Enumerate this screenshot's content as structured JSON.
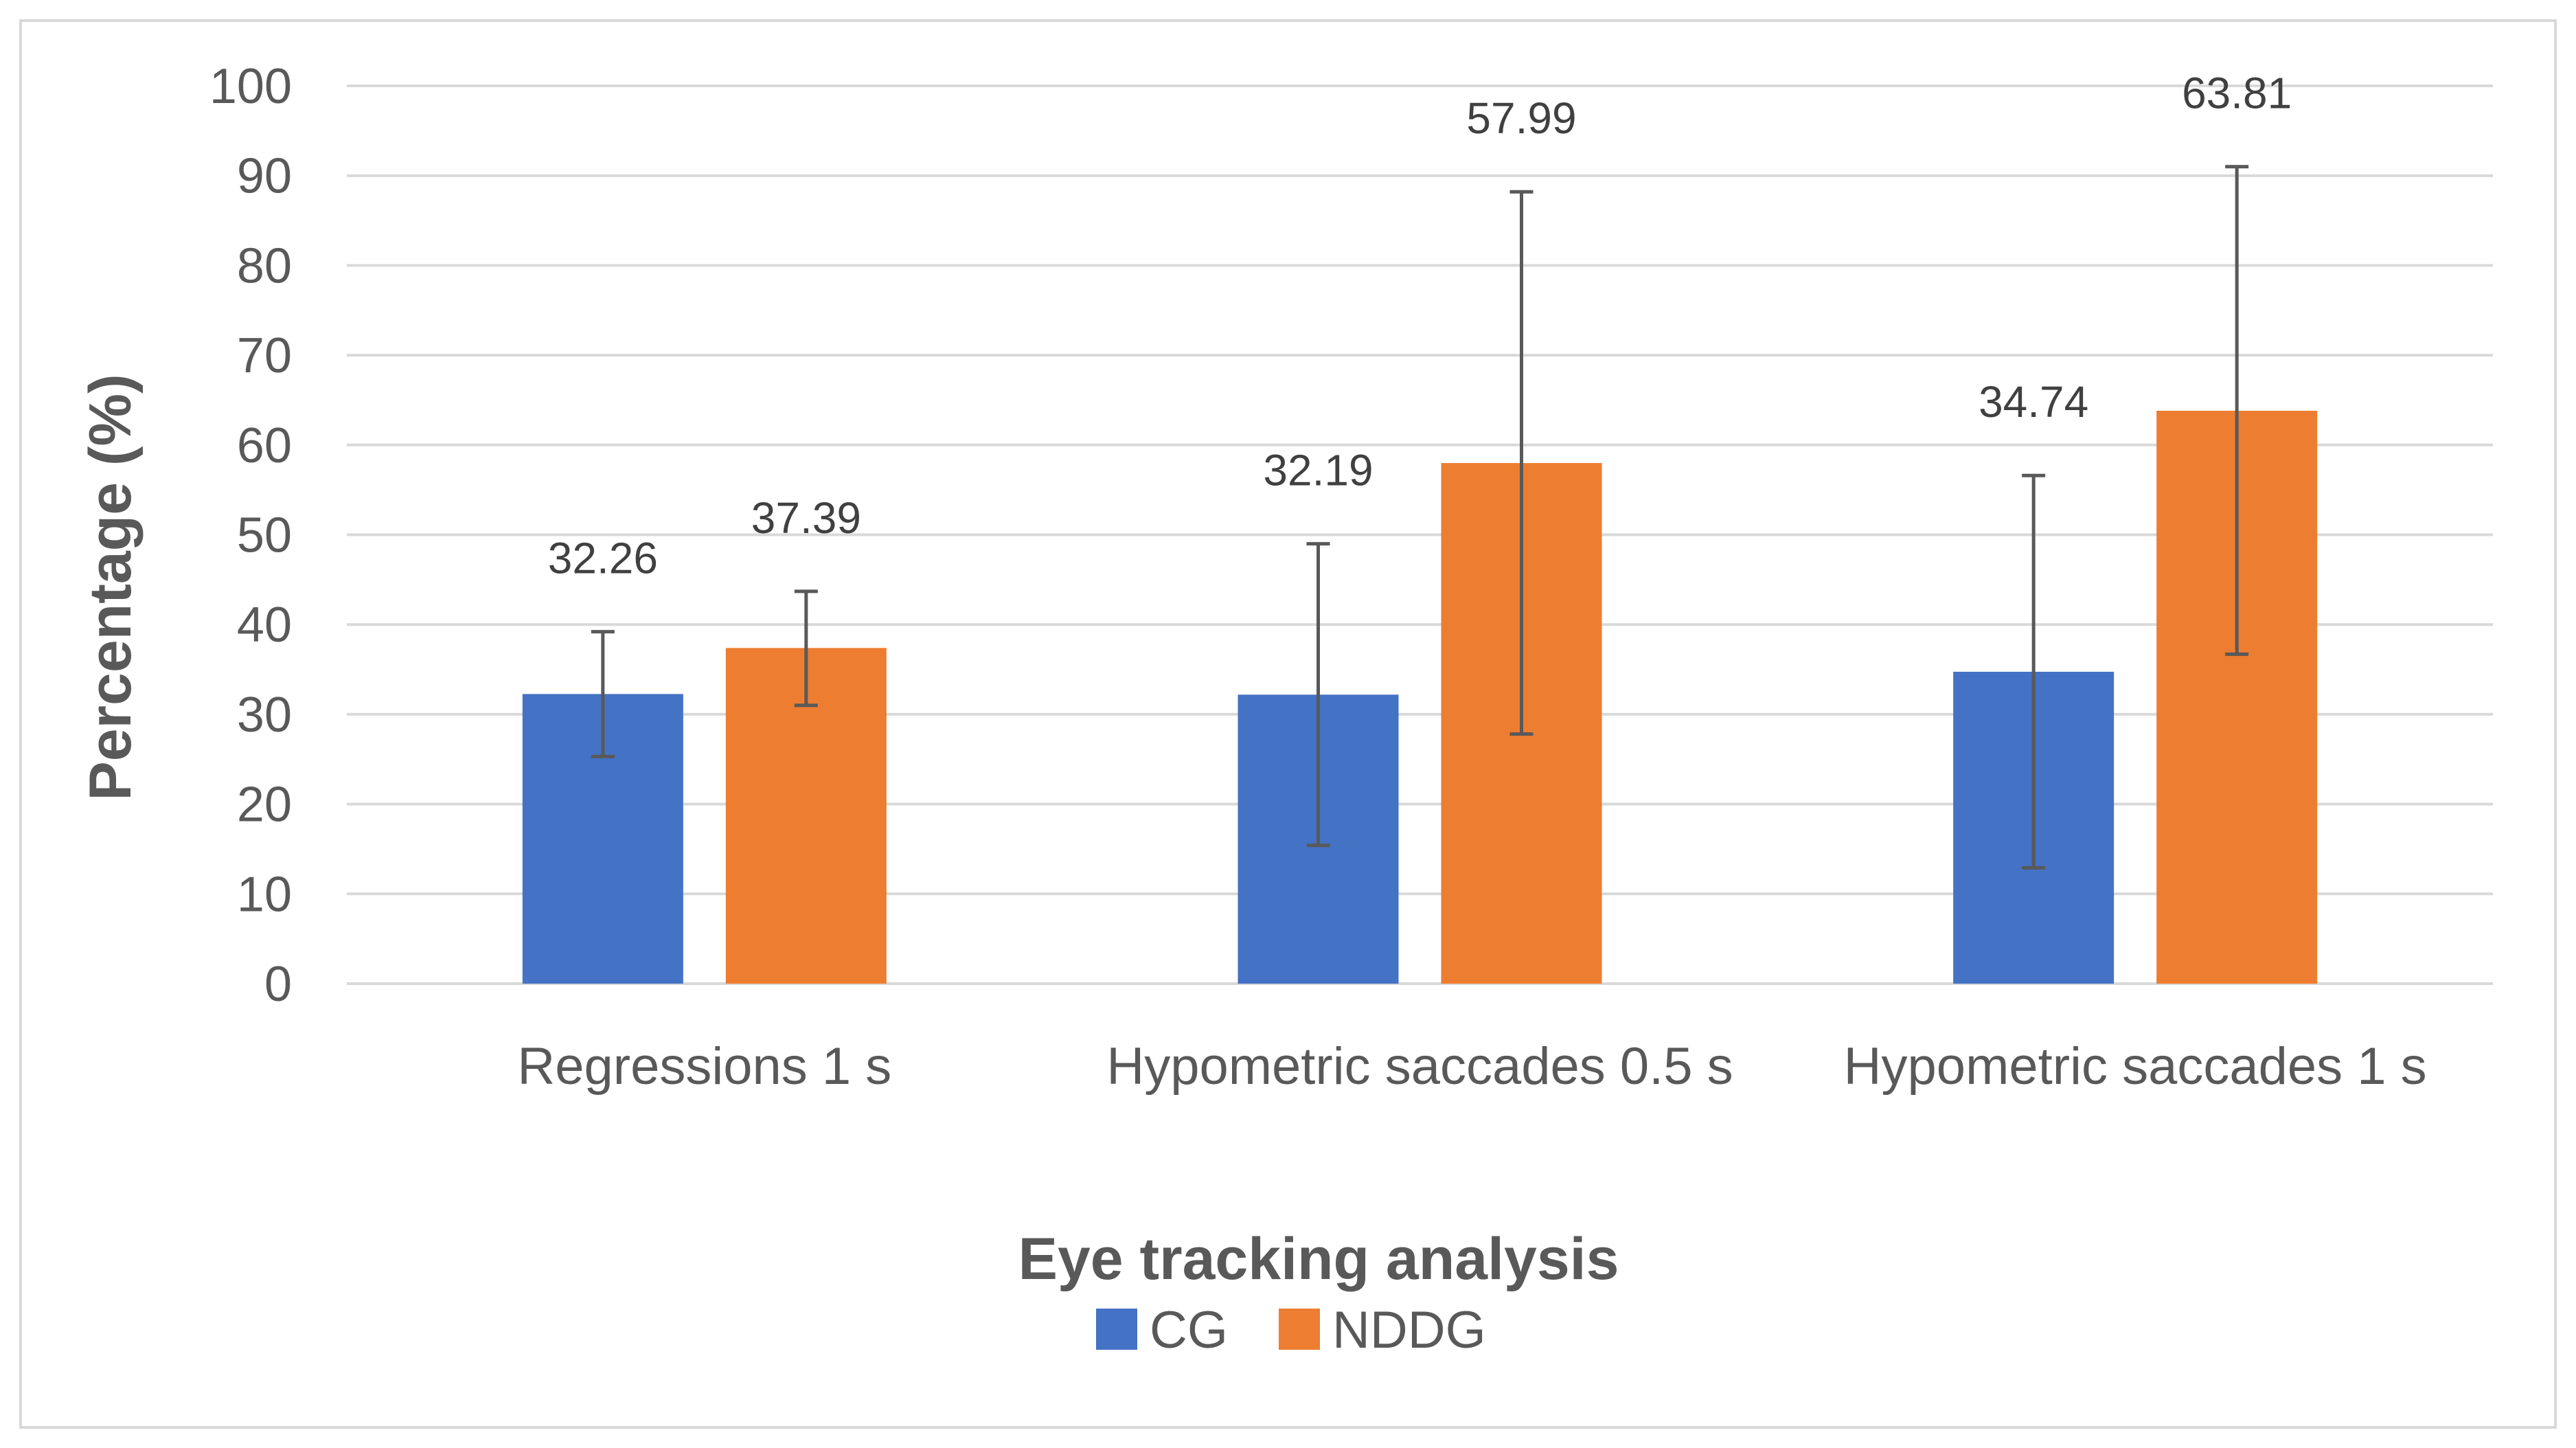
{
  "chart_data": {
    "type": "bar",
    "title": "",
    "xlabel": "Eye tracking analysis",
    "ylabel": "Percentage (%)",
    "ylim": [
      0,
      100
    ],
    "yticks": [
      0,
      10,
      20,
      30,
      40,
      50,
      60,
      70,
      80,
      90,
      100
    ],
    "ytick_labels": [
      "0",
      "10",
      "20",
      "30",
      "40",
      "50",
      "60",
      "70",
      "80",
      "90",
      "100"
    ],
    "grid": true,
    "legend_position": "bottom",
    "categories": [
      "Regressions 1 s",
      "Hypometric saccades 0.5 s",
      "Hypometric saccades 1 s"
    ],
    "series": [
      {
        "name": "CG",
        "color": "#4472C4",
        "values": [
          32.26,
          32.19,
          34.74
        ],
        "value_labels": [
          "32.26",
          "32.19",
          "34.74"
        ],
        "error_low": [
          25.3,
          15.4,
          12.9
        ],
        "error_high": [
          39.2,
          49.0,
          56.6
        ]
      },
      {
        "name": "NDDG",
        "color": "#ED7D31",
        "values": [
          37.39,
          57.99,
          63.81
        ],
        "value_labels": [
          "37.39",
          "57.99",
          "63.81"
        ],
        "error_low": [
          31.0,
          27.8,
          36.7
        ],
        "error_high": [
          43.7,
          88.2,
          91.0
        ]
      }
    ],
    "colors": {
      "grid": "#D9D9D9",
      "error_bar": "#595959",
      "frame": "#D9D9D9"
    }
  }
}
